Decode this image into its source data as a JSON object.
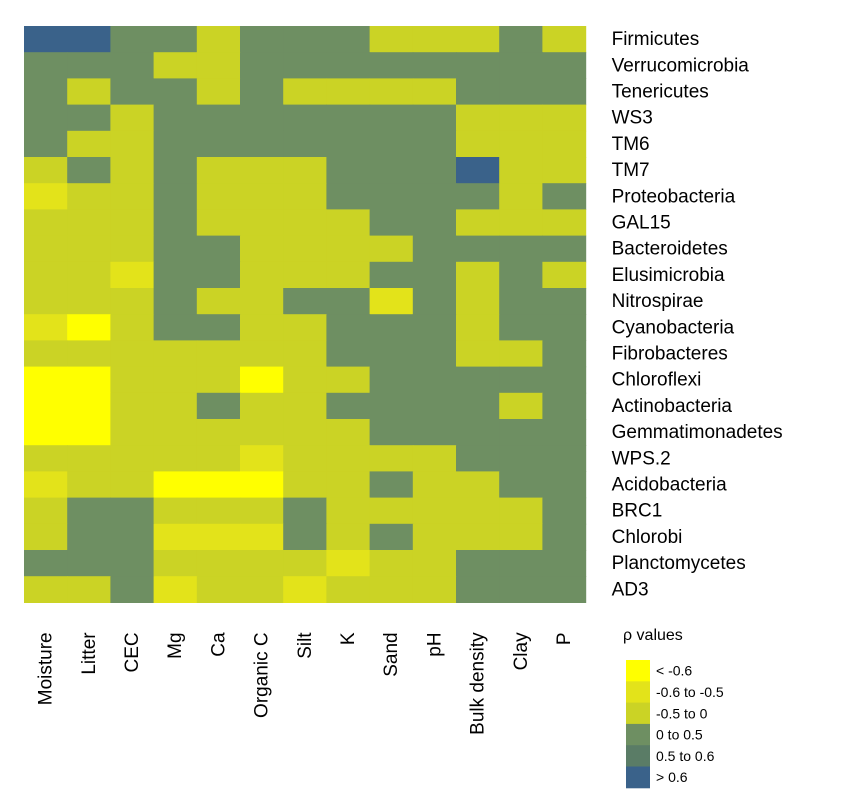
{
  "chart_data": {
    "type": "heatmap",
    "columns": [
      "Moisture",
      "Litter",
      "CEC",
      "Mg",
      "Ca",
      "Organic C",
      "Silt",
      "K",
      "Sand",
      "pH",
      "Bulk density",
      "Clay",
      "P"
    ],
    "rows": [
      "Firmicutes",
      "Verrucomicrobia",
      "Tenericutes",
      "WS3",
      "TM6",
      "TM7",
      "Proteobacteria",
      "GAL15",
      "Bacteroidetes",
      "Elusimicrobia",
      "Nitrospirae",
      "Cyanobacteria",
      "Fibrobacteres",
      "Chloroflexi",
      "Actinobacteria",
      "Gemmatimonadetes",
      "WPS.2",
      "Acidobacteria",
      "BRC1",
      "Chlorobi",
      "Planctomycetes",
      "AD3"
    ],
    "legend": {
      "title": "ρ values",
      "labels": [
        "< -0.6",
        "-0.6 to -0.5",
        "-0.5 to 0",
        "0 to 0.5",
        "0.5 to 0.6",
        "> 0.6"
      ],
      "colors": [
        "#ffff00",
        "#e3e31a",
        "#cbd325",
        "#6e8f62",
        "#5a7c66",
        "#3a628a"
      ]
    },
    "note": "values are category indices into legend.labels (0 = '< -0.6' ... 5 = '> 0.6')",
    "values": [
      [
        5,
        5,
        3,
        3,
        2,
        3,
        3,
        3,
        2,
        2,
        2,
        3,
        2
      ],
      [
        3,
        3,
        3,
        2,
        2,
        3,
        3,
        3,
        3,
        3,
        3,
        3,
        3
      ],
      [
        3,
        2,
        3,
        3,
        2,
        3,
        2,
        2,
        2,
        2,
        3,
        3,
        3
      ],
      [
        3,
        3,
        2,
        3,
        3,
        3,
        3,
        3,
        3,
        3,
        2,
        2,
        2
      ],
      [
        3,
        2,
        2,
        3,
        3,
        3,
        3,
        3,
        3,
        3,
        2,
        2,
        2
      ],
      [
        2,
        3,
        2,
        3,
        2,
        2,
        2,
        3,
        3,
        3,
        5,
        2,
        2
      ],
      [
        1,
        2,
        2,
        3,
        2,
        2,
        2,
        3,
        3,
        3,
        3,
        2,
        3
      ],
      [
        2,
        2,
        2,
        3,
        2,
        2,
        2,
        2,
        3,
        3,
        2,
        2,
        2
      ],
      [
        2,
        2,
        2,
        3,
        3,
        2,
        2,
        2,
        2,
        3,
        3,
        3,
        3
      ],
      [
        2,
        2,
        1,
        3,
        3,
        2,
        2,
        2,
        3,
        3,
        2,
        3,
        2
      ],
      [
        2,
        2,
        2,
        3,
        2,
        2,
        3,
        3,
        1,
        3,
        2,
        3,
        3
      ],
      [
        1,
        0,
        2,
        3,
        3,
        2,
        2,
        3,
        3,
        3,
        2,
        3,
        3
      ],
      [
        2,
        2,
        2,
        2,
        2,
        2,
        2,
        3,
        3,
        3,
        2,
        2,
        3
      ],
      [
        0,
        0,
        2,
        2,
        2,
        0,
        2,
        2,
        3,
        3,
        3,
        3,
        3
      ],
      [
        0,
        0,
        2,
        2,
        3,
        2,
        2,
        3,
        3,
        3,
        3,
        2,
        3
      ],
      [
        0,
        0,
        2,
        2,
        2,
        2,
        2,
        2,
        3,
        3,
        3,
        3,
        3
      ],
      [
        2,
        2,
        2,
        2,
        2,
        1,
        2,
        2,
        2,
        2,
        3,
        3,
        3
      ],
      [
        1,
        2,
        2,
        0,
        0,
        0,
        2,
        2,
        3,
        2,
        2,
        3,
        3
      ],
      [
        2,
        3,
        3,
        2,
        2,
        2,
        3,
        2,
        2,
        2,
        2,
        2,
        3
      ],
      [
        2,
        3,
        3,
        1,
        1,
        1,
        3,
        2,
        3,
        2,
        2,
        2,
        3
      ],
      [
        3,
        3,
        3,
        2,
        2,
        2,
        2,
        1,
        2,
        2,
        3,
        3,
        3
      ],
      [
        2,
        2,
        3,
        1,
        2,
        2,
        1,
        2,
        2,
        2,
        3,
        3,
        3
      ]
    ]
  }
}
